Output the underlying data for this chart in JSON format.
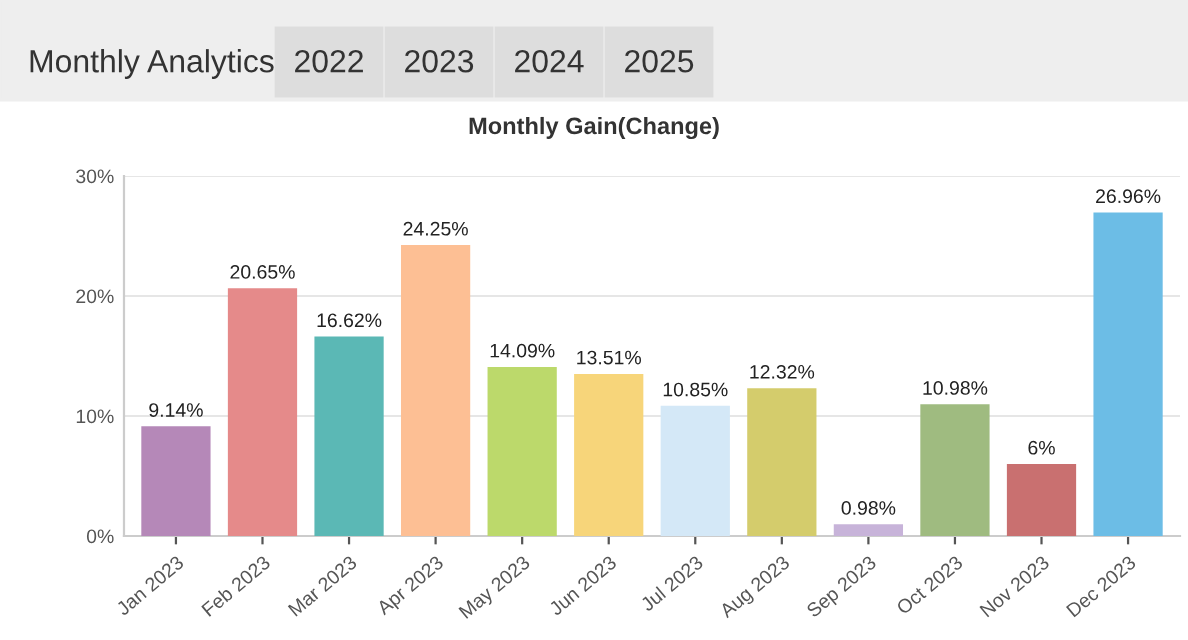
{
  "chart_data": {
    "type": "bar",
    "title": "Monthly Gain(Change)",
    "annotations": [
      "Monthly Analytics",
      "2022",
      "2023",
      "2024",
      "2025"
    ],
    "categories": [
      "Jan 2023",
      "Feb 2023",
      "Mar 2023",
      "Apr 2023",
      "May 2023",
      "Jun 2023",
      "Jul 2023",
      "Aug 2023",
      "Sep 2023",
      "Oct 2023",
      "Nov 2023",
      "Dec 2023"
    ],
    "values": [
      9.14,
      20.65,
      16.62,
      24.25,
      14.09,
      13.51,
      10.85,
      12.32,
      0.98,
      10.98,
      6,
      26.96
    ],
    "value_labels": [
      "9.14%",
      "20.65%",
      "16.62%",
      "24.25%",
      "14.09%",
      "13.51%",
      "10.85%",
      "12.32%",
      "0.98%",
      "10.98%",
      "6%",
      "26.96%"
    ],
    "colors": [
      "#b588b8",
      "#e58a8a",
      "#5bb8b5",
      "#fdbf94",
      "#bcd96b",
      "#f7d57a",
      "#d4e8f7",
      "#d4cc6c",
      "#c7b3d9",
      "#9fbb80",
      "#c97070",
      "#6cbde6"
    ],
    "ylim": [
      0,
      30
    ],
    "yticks": [
      {
        "value": 0,
        "label": "0%"
      },
      {
        "value": 10,
        "label": "10%"
      },
      {
        "value": 20,
        "label": "20%"
      },
      {
        "value": 30,
        "label": "30%"
      }
    ],
    "grid": "y",
    "legend": false
  }
}
